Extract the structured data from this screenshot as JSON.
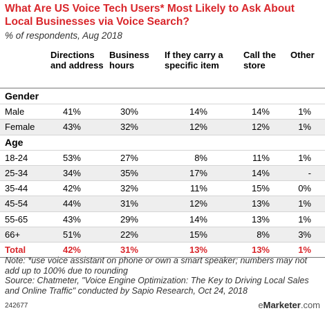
{
  "title": "What Are US Voice Tech Users* Most Likely to Ask About Local Businesses via Voice Search?",
  "subtitle": "% of respondents, Aug 2018",
  "chart_data": {
    "type": "table",
    "columns": [
      "Directions and address",
      "Business hours",
      "If they carry a specific item",
      "Call the store",
      "Other"
    ],
    "sections": [
      {
        "name": "Gender",
        "rows": [
          {
            "label": "Male",
            "values": [
              "41%",
              "30%",
              "14%",
              "14%",
              "1%"
            ]
          },
          {
            "label": "Female",
            "values": [
              "43%",
              "32%",
              "12%",
              "12%",
              "1%"
            ]
          }
        ]
      },
      {
        "name": "Age",
        "rows": [
          {
            "label": "18-24",
            "values": [
              "53%",
              "27%",
              "8%",
              "11%",
              "1%"
            ]
          },
          {
            "label": "25-34",
            "values": [
              "34%",
              "35%",
              "17%",
              "14%",
              "-"
            ]
          },
          {
            "label": "35-44",
            "values": [
              "42%",
              "32%",
              "11%",
              "15%",
              "0%"
            ]
          },
          {
            "label": "45-54",
            "values": [
              "44%",
              "31%",
              "12%",
              "13%",
              "1%"
            ]
          },
          {
            "label": "55-65",
            "values": [
              "43%",
              "29%",
              "14%",
              "13%",
              "1%"
            ]
          },
          {
            "label": "66+",
            "values": [
              "51%",
              "22%",
              "15%",
              "8%",
              "3%"
            ]
          }
        ]
      }
    ],
    "total": {
      "label": "Total",
      "values": [
        "42%",
        "31%",
        "13%",
        "13%",
        "1%"
      ]
    }
  },
  "note": "Note: *use voice assistant on phone or own a smart speaker; numbers may not add up to 100% due to rounding",
  "source": "Source: Chatmeter, \"Voice Engine Optimization: The Key to Driving Local Sales and Online Traffic\" conducted by Sapio Research, Oct 24, 2018",
  "footer_id": "242677",
  "brand": {
    "prefix": "e",
    "name": "Marketer",
    "suffix": ".com"
  },
  "colors": {
    "accent": "#d9262b",
    "shade": "#eeeeee"
  }
}
